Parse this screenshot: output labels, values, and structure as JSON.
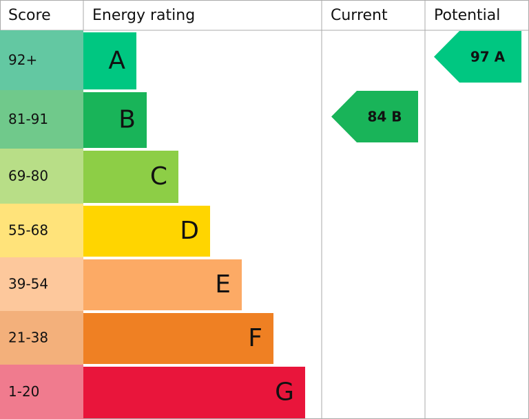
{
  "header": {
    "score": "Score",
    "rating": "Energy rating",
    "current": "Current",
    "potential": "Potential"
  },
  "bands": [
    {
      "score": "92+",
      "letter": "A",
      "color": "#00c781",
      "light": "#63c8a2"
    },
    {
      "score": "81-91",
      "letter": "B",
      "color": "#19b459",
      "light": "#70c98b"
    },
    {
      "score": "69-80",
      "letter": "C",
      "color": "#8dce46",
      "light": "#b8de87"
    },
    {
      "score": "55-68",
      "letter": "D",
      "color": "#ffd500",
      "light": "#ffe37a"
    },
    {
      "score": "39-54",
      "letter": "E",
      "color": "#fcaa65",
      "light": "#fdc89c"
    },
    {
      "score": "21-38",
      "letter": "F",
      "color": "#ef8023",
      "light": "#f3b07b"
    },
    {
      "score": "1-20",
      "letter": "G",
      "color": "#e9153b",
      "light": "#f07b8e"
    }
  ],
  "current": {
    "score": 84,
    "rating": "B"
  },
  "potential": {
    "score": 97,
    "rating": "A"
  }
}
